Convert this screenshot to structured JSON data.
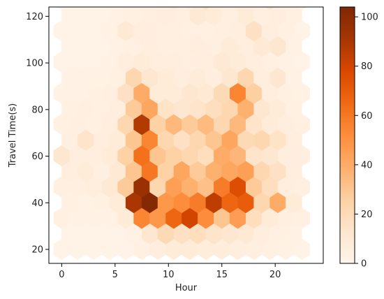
{
  "chart_data": {
    "type": "heatmap",
    "subtype": "hexbin",
    "xlabel": "Hour",
    "ylabel": "Travel Time(s)",
    "xlim": [
      -1.2,
      24.5
    ],
    "ylim": [
      14,
      124
    ],
    "xticks": [
      0,
      5,
      10,
      15,
      20
    ],
    "yticks": [
      20,
      40,
      60,
      80,
      100,
      120
    ],
    "colormap": "Oranges",
    "colorbar": {
      "min": 0,
      "max": 104,
      "ticks": [
        0,
        20,
        40,
        60,
        80,
        100
      ]
    },
    "hex_grid": {
      "x0": 0,
      "y0": 20,
      "dx": 1.5,
      "dy": 6.7
    },
    "bins": [
      [
        0,
        0,
        2
      ],
      [
        1,
        0,
        2
      ],
      [
        2,
        0,
        2
      ],
      [
        3,
        0,
        2
      ],
      [
        4,
        0,
        2
      ],
      [
        5,
        0,
        4
      ],
      [
        6,
        0,
        6
      ],
      [
        7,
        0,
        8
      ],
      [
        8,
        0,
        8
      ],
      [
        9,
        0,
        7
      ],
      [
        10,
        0,
        7
      ],
      [
        11,
        0,
        6
      ],
      [
        12,
        0,
        5
      ],
      [
        13,
        0,
        4
      ],
      [
        14,
        0,
        3
      ],
      [
        15,
        0,
        2
      ],
      [
        0,
        1,
        2
      ],
      [
        1,
        1,
        2
      ],
      [
        2,
        1,
        2
      ],
      [
        3,
        1,
        2
      ],
      [
        4,
        1,
        3
      ],
      [
        5,
        1,
        12
      ],
      [
        6,
        1,
        20
      ],
      [
        7,
        1,
        16
      ],
      [
        8,
        1,
        18
      ],
      [
        9,
        1,
        14
      ],
      [
        10,
        1,
        12
      ],
      [
        11,
        1,
        10
      ],
      [
        12,
        1,
        6
      ],
      [
        13,
        1,
        4
      ],
      [
        14,
        1,
        3
      ],
      [
        0,
        2,
        4
      ],
      [
        1,
        2,
        3
      ],
      [
        2,
        2,
        3
      ],
      [
        3,
        2,
        3
      ],
      [
        4,
        2,
        8
      ],
      [
        5,
        2,
        55
      ],
      [
        6,
        2,
        48
      ],
      [
        7,
        2,
        66
      ],
      [
        8,
        2,
        80
      ],
      [
        9,
        2,
        52
      ],
      [
        10,
        2,
        30
      ],
      [
        11,
        2,
        46
      ],
      [
        12,
        2,
        18
      ],
      [
        13,
        2,
        8
      ],
      [
        14,
        2,
        5
      ],
      [
        15,
        2,
        4
      ],
      [
        0,
        3,
        4
      ],
      [
        1,
        3,
        3
      ],
      [
        2,
        3,
        4
      ],
      [
        3,
        3,
        8
      ],
      [
        4,
        3,
        90
      ],
      [
        5,
        3,
        102
      ],
      [
        6,
        3,
        48
      ],
      [
        7,
        3,
        52
      ],
      [
        8,
        3,
        58
      ],
      [
        9,
        3,
        85
      ],
      [
        10,
        3,
        66
      ],
      [
        11,
        3,
        70
      ],
      [
        12,
        3,
        22
      ],
      [
        13,
        3,
        40
      ],
      [
        14,
        3,
        8
      ],
      [
        0,
        4,
        5
      ],
      [
        1,
        4,
        5
      ],
      [
        2,
        4,
        6
      ],
      [
        3,
        4,
        10
      ],
      [
        4,
        4,
        28
      ],
      [
        5,
        4,
        95
      ],
      [
        6,
        4,
        22
      ],
      [
        7,
        4,
        45
      ],
      [
        8,
        4,
        38
      ],
      [
        9,
        4,
        32
      ],
      [
        10,
        4,
        58
      ],
      [
        11,
        4,
        76
      ],
      [
        12,
        4,
        28
      ],
      [
        13,
        4,
        18
      ],
      [
        14,
        4,
        6
      ],
      [
        15,
        4,
        5
      ],
      [
        0,
        5,
        6
      ],
      [
        1,
        5,
        8
      ],
      [
        2,
        5,
        5
      ],
      [
        3,
        5,
        10
      ],
      [
        4,
        5,
        30
      ],
      [
        5,
        5,
        60
      ],
      [
        6,
        5,
        25
      ],
      [
        7,
        5,
        42
      ],
      [
        8,
        5,
        28
      ],
      [
        9,
        5,
        38
      ],
      [
        10,
        5,
        42
      ],
      [
        11,
        5,
        45
      ],
      [
        12,
        5,
        22
      ],
      [
        13,
        5,
        16
      ],
      [
        14,
        5,
        6
      ],
      [
        0,
        6,
        12
      ],
      [
        1,
        6,
        6
      ],
      [
        2,
        6,
        6
      ],
      [
        3,
        6,
        8
      ],
      [
        4,
        6,
        25
      ],
      [
        5,
        6,
        62
      ],
      [
        6,
        6,
        30
      ],
      [
        7,
        6,
        25
      ],
      [
        8,
        6,
        22
      ],
      [
        9,
        6,
        18
      ],
      [
        10,
        6,
        40
      ],
      [
        11,
        6,
        36
      ],
      [
        12,
        6,
        14
      ],
      [
        13,
        6,
        12
      ],
      [
        14,
        6,
        6
      ],
      [
        15,
        6,
        5
      ],
      [
        0,
        7,
        5
      ],
      [
        1,
        7,
        14
      ],
      [
        2,
        7,
        6
      ],
      [
        3,
        7,
        8
      ],
      [
        4,
        7,
        30
      ],
      [
        5,
        7,
        55
      ],
      [
        6,
        7,
        22
      ],
      [
        7,
        7,
        16
      ],
      [
        8,
        7,
        22
      ],
      [
        9,
        7,
        30
      ],
      [
        10,
        7,
        42
      ],
      [
        11,
        7,
        20
      ],
      [
        12,
        7,
        22
      ],
      [
        13,
        7,
        15
      ],
      [
        14,
        7,
        6
      ],
      [
        0,
        8,
        4
      ],
      [
        1,
        8,
        5
      ],
      [
        2,
        8,
        4
      ],
      [
        3,
        8,
        6
      ],
      [
        4,
        8,
        22
      ],
      [
        5,
        8,
        88
      ],
      [
        6,
        8,
        25
      ],
      [
        7,
        8,
        35
      ],
      [
        8,
        8,
        28
      ],
      [
        9,
        8,
        34
      ],
      [
        10,
        8,
        22
      ],
      [
        11,
        8,
        35
      ],
      [
        12,
        8,
        14
      ],
      [
        13,
        8,
        8
      ],
      [
        14,
        8,
        6
      ],
      [
        15,
        8,
        4
      ],
      [
        0,
        9,
        4
      ],
      [
        1,
        9,
        5
      ],
      [
        2,
        9,
        4
      ],
      [
        3,
        9,
        6
      ],
      [
        4,
        9,
        28
      ],
      [
        5,
        9,
        42
      ],
      [
        6,
        9,
        15
      ],
      [
        7,
        9,
        12
      ],
      [
        8,
        9,
        14
      ],
      [
        9,
        9,
        18
      ],
      [
        10,
        9,
        22
      ],
      [
        11,
        9,
        38
      ],
      [
        12,
        9,
        12
      ],
      [
        13,
        9,
        8
      ],
      [
        14,
        9,
        4
      ],
      [
        0,
        10,
        3
      ],
      [
        1,
        10,
        3
      ],
      [
        2,
        10,
        4
      ],
      [
        3,
        10,
        5
      ],
      [
        4,
        10,
        16
      ],
      [
        5,
        10,
        40
      ],
      [
        6,
        10,
        8
      ],
      [
        7,
        10,
        8
      ],
      [
        8,
        10,
        12
      ],
      [
        9,
        10,
        10
      ],
      [
        10,
        10,
        20
      ],
      [
        11,
        10,
        55
      ],
      [
        12,
        10,
        26
      ],
      [
        13,
        10,
        6
      ],
      [
        14,
        10,
        4
      ],
      [
        15,
        10,
        3
      ],
      [
        0,
        11,
        3
      ],
      [
        1,
        11,
        3
      ],
      [
        2,
        11,
        3
      ],
      [
        3,
        11,
        4
      ],
      [
        4,
        11,
        22
      ],
      [
        5,
        11,
        12
      ],
      [
        6,
        11,
        8
      ],
      [
        7,
        11,
        6
      ],
      [
        8,
        11,
        8
      ],
      [
        9,
        11,
        6
      ],
      [
        10,
        11,
        12
      ],
      [
        11,
        11,
        22
      ],
      [
        12,
        11,
        6
      ],
      [
        13,
        11,
        12
      ],
      [
        14,
        11,
        3
      ],
      [
        0,
        12,
        2
      ],
      [
        1,
        12,
        2
      ],
      [
        2,
        12,
        2
      ],
      [
        3,
        12,
        3
      ],
      [
        4,
        12,
        6
      ],
      [
        5,
        12,
        8
      ],
      [
        6,
        12,
        6
      ],
      [
        7,
        12,
        6
      ],
      [
        8,
        12,
        5
      ],
      [
        9,
        12,
        6
      ],
      [
        10,
        12,
        10
      ],
      [
        11,
        12,
        8
      ],
      [
        12,
        12,
        6
      ],
      [
        13,
        12,
        4
      ],
      [
        14,
        12,
        3
      ],
      [
        15,
        12,
        2
      ],
      [
        0,
        13,
        2
      ],
      [
        1,
        13,
        2
      ],
      [
        2,
        13,
        2
      ],
      [
        3,
        13,
        3
      ],
      [
        4,
        13,
        4
      ],
      [
        5,
        13,
        6
      ],
      [
        6,
        13,
        5
      ],
      [
        7,
        13,
        5
      ],
      [
        8,
        13,
        6
      ],
      [
        9,
        13,
        5
      ],
      [
        10,
        13,
        8
      ],
      [
        11,
        13,
        6
      ],
      [
        12,
        13,
        10
      ],
      [
        13,
        13,
        12
      ],
      [
        14,
        13,
        3
      ],
      [
        0,
        14,
        2
      ],
      [
        1,
        14,
        2
      ],
      [
        2,
        14,
        2
      ],
      [
        3,
        14,
        3
      ],
      [
        4,
        14,
        10
      ],
      [
        5,
        14,
        6
      ],
      [
        6,
        14,
        5
      ],
      [
        7,
        14,
        5
      ],
      [
        8,
        14,
        4
      ],
      [
        9,
        14,
        4
      ],
      [
        10,
        14,
        5
      ],
      [
        11,
        14,
        6
      ],
      [
        12,
        14,
        16
      ],
      [
        13,
        14,
        6
      ],
      [
        14,
        14,
        4
      ],
      [
        15,
        14,
        2
      ],
      [
        0,
        15,
        2
      ],
      [
        1,
        15,
        2
      ],
      [
        2,
        15,
        2
      ],
      [
        3,
        15,
        3
      ],
      [
        4,
        15,
        4
      ],
      [
        5,
        15,
        5
      ],
      [
        6,
        15,
        6
      ],
      [
        7,
        15,
        5
      ],
      [
        8,
        15,
        10
      ],
      [
        9,
        15,
        8
      ],
      [
        10,
        15,
        5
      ],
      [
        11,
        15,
        8
      ],
      [
        12,
        15,
        5
      ],
      [
        13,
        15,
        6
      ],
      [
        14,
        15,
        4
      ],
      [
        0,
        16,
        2
      ],
      [
        1,
        16,
        2
      ],
      [
        2,
        16,
        2
      ],
      [
        3,
        16,
        3
      ],
      [
        4,
        16,
        4
      ],
      [
        5,
        16,
        5
      ],
      [
        6,
        16,
        6
      ],
      [
        7,
        16,
        10
      ],
      [
        8,
        16,
        8
      ],
      [
        9,
        16,
        16
      ],
      [
        10,
        16,
        6
      ],
      [
        11,
        16,
        8
      ],
      [
        12,
        16,
        6
      ],
      [
        13,
        16,
        14
      ],
      [
        14,
        16,
        4
      ],
      [
        15,
        16,
        2
      ],
      [
        0,
        17,
        2
      ],
      [
        1,
        17,
        2
      ],
      [
        2,
        17,
        2
      ],
      [
        3,
        17,
        3
      ],
      [
        4,
        17,
        4
      ],
      [
        5,
        17,
        5
      ],
      [
        6,
        17,
        5
      ],
      [
        7,
        17,
        6
      ],
      [
        8,
        17,
        5
      ],
      [
        9,
        17,
        6
      ],
      [
        10,
        17,
        5
      ],
      [
        11,
        17,
        5
      ],
      [
        12,
        17,
        4
      ],
      [
        13,
        17,
        4
      ],
      [
        14,
        17,
        3
      ]
    ]
  }
}
